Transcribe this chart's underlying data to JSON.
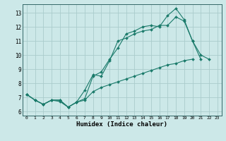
{
  "title": "",
  "xlabel": "Humidex (Indice chaleur)",
  "ylabel": "",
  "background_color": "#cce8e8",
  "grid_color": "#aacccc",
  "line_color": "#1a7a6a",
  "xlim": [
    -0.5,
    23.5
  ],
  "ylim": [
    5.7,
    13.6
  ],
  "xticks": [
    0,
    1,
    2,
    3,
    4,
    5,
    6,
    7,
    8,
    9,
    10,
    11,
    12,
    13,
    14,
    15,
    16,
    17,
    18,
    19,
    20,
    21,
    22,
    23
  ],
  "yticks": [
    6,
    7,
    8,
    9,
    10,
    11,
    12,
    13
  ],
  "series1": [
    7.2,
    6.8,
    6.5,
    6.8,
    6.8,
    6.3,
    6.65,
    6.9,
    8.5,
    8.8,
    9.7,
    10.5,
    11.5,
    11.7,
    12.0,
    12.1,
    12.0,
    12.8,
    13.3,
    12.5,
    11.0,
    10.0,
    9.7,
    null
  ],
  "series2": [
    7.2,
    6.8,
    6.5,
    6.8,
    6.7,
    6.3,
    6.65,
    7.5,
    8.6,
    8.5,
    9.6,
    11.0,
    11.2,
    11.5,
    11.7,
    11.8,
    12.1,
    12.1,
    12.7,
    12.4,
    11.0,
    9.7,
    null,
    null
  ],
  "series3": [
    7.2,
    6.8,
    6.5,
    6.8,
    6.8,
    6.3,
    6.65,
    6.8,
    7.4,
    7.7,
    7.9,
    8.1,
    8.3,
    8.5,
    8.7,
    8.9,
    9.1,
    9.3,
    9.4,
    9.6,
    9.7,
    null,
    null,
    null
  ]
}
